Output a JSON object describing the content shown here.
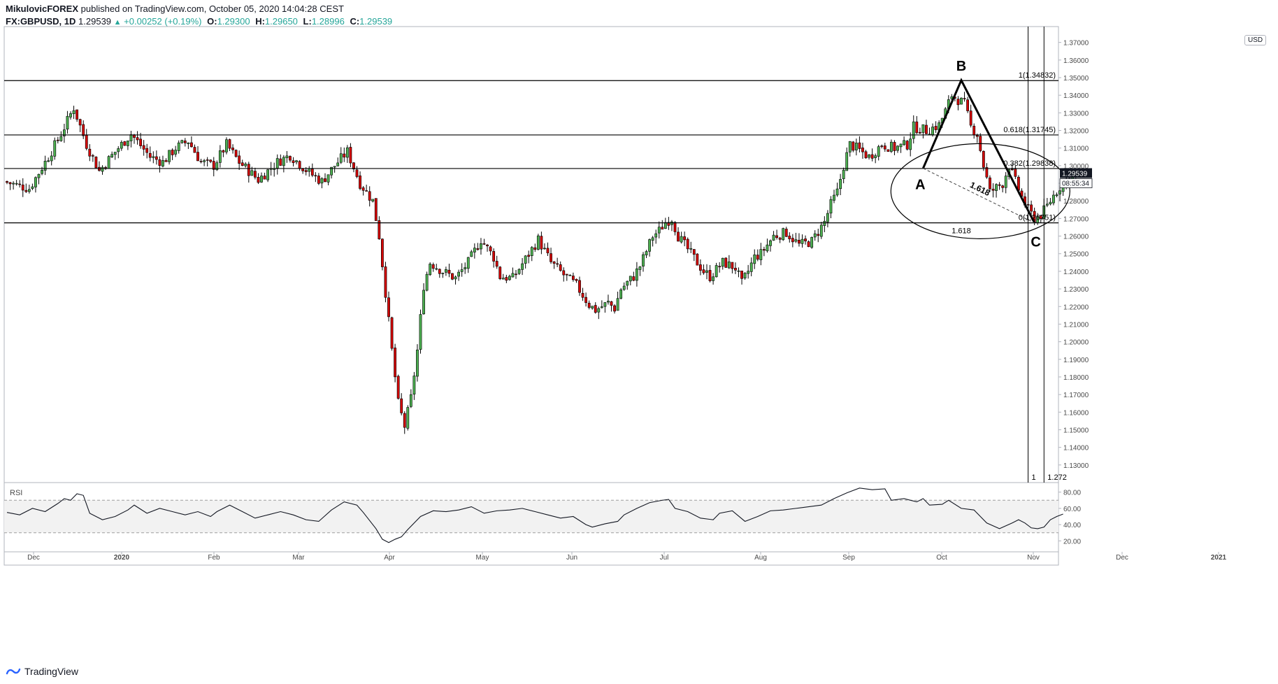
{
  "header": {
    "author": "MikulovicFOREX",
    "published": "published on TradingView.com, October 05, 2020 14:04:28 CEST",
    "symbol": "FX:GBPUSD, 1D",
    "last": "1.29539",
    "change": "+0.00252 (+0.19%)",
    "o_label": "O:",
    "o_val": "1.29300",
    "h_label": "H:",
    "h_val": "1.29650",
    "l_label": "L:",
    "l_val": "1.28996",
    "c_label": "C:",
    "c_val": "1.29539"
  },
  "footer": {
    "brand": "TradingView"
  },
  "currency_button": "USD",
  "colors": {
    "up": "#26a69a",
    "down": "#d32f2f",
    "bull_body": "#4caf50",
    "bear_body": "#d50000"
  },
  "chart_data": {
    "type": "candlestick",
    "price_axis": {
      "ylim": [
        1.12,
        1.379
      ],
      "ticks": [
        "1.37000",
        "1.36000",
        "1.35000",
        "1.34000",
        "1.33000",
        "1.32000",
        "1.31000",
        "1.30000",
        "1.29000",
        "1.28000",
        "1.27000",
        "1.26000",
        "1.25000",
        "1.24000",
        "1.23000",
        "1.22000",
        "1.21000",
        "1.20000",
        "1.19000",
        "1.18000",
        "1.17000",
        "1.16000",
        "1.15000",
        "1.14000",
        "1.13000"
      ],
      "last_price_label": "1.29539",
      "countdown_label": "08:55:34"
    },
    "time_axis": [
      "Dec",
      "2020",
      "Feb",
      "Mar",
      "Apr",
      "May",
      "Jun",
      "Jul",
      "Aug",
      "Sep",
      "Oct",
      "Nov",
      "Dec",
      "2021"
    ],
    "price_path": [
      [
        0,
        1.291
      ],
      [
        8,
        1.287
      ],
      [
        14,
        1.305
      ],
      [
        18,
        1.318
      ],
      [
        22,
        1.333
      ],
      [
        26,
        1.312
      ],
      [
        30,
        1.297
      ],
      [
        36,
        1.31
      ],
      [
        40,
        1.318
      ],
      [
        46,
        1.305
      ],
      [
        50,
        1.302
      ],
      [
        54,
        1.31
      ],
      [
        58,
        1.314
      ],
      [
        62,
        1.302
      ],
      [
        66,
        1.3
      ],
      [
        70,
        1.312
      ],
      [
        74,
        1.302
      ],
      [
        80,
        1.292
      ],
      [
        86,
        1.302
      ],
      [
        90,
        1.306
      ],
      [
        96,
        1.296
      ],
      [
        100,
        1.291
      ],
      [
        104,
        1.3
      ],
      [
        108,
        1.308
      ],
      [
        112,
        1.29
      ],
      [
        116,
        1.28
      ],
      [
        118,
        1.26
      ],
      [
        120,
        1.228
      ],
      [
        122,
        1.195
      ],
      [
        124,
        1.165
      ],
      [
        126,
        1.152
      ],
      [
        128,
        1.168
      ],
      [
        130,
        1.195
      ],
      [
        132,
        1.232
      ],
      [
        134,
        1.245
      ],
      [
        138,
        1.24
      ],
      [
        142,
        1.236
      ],
      [
        146,
        1.245
      ],
      [
        150,
        1.258
      ],
      [
        154,
        1.248
      ],
      [
        156,
        1.237
      ],
      [
        160,
        1.236
      ],
      [
        164,
        1.247
      ],
      [
        168,
        1.258
      ],
      [
        172,
        1.245
      ],
      [
        176,
        1.238
      ],
      [
        180,
        1.232
      ],
      [
        184,
        1.221
      ],
      [
        186,
        1.218
      ],
      [
        190,
        1.222
      ],
      [
        192,
        1.219
      ],
      [
        194,
        1.23
      ],
      [
        198,
        1.237
      ],
      [
        200,
        1.243
      ],
      [
        204,
        1.26
      ],
      [
        206,
        1.263
      ],
      [
        208,
        1.268
      ],
      [
        210,
        1.27
      ],
      [
        212,
        1.26
      ],
      [
        214,
        1.255
      ],
      [
        216,
        1.25
      ],
      [
        220,
        1.24
      ],
      [
        222,
        1.237
      ],
      [
        226,
        1.245
      ],
      [
        230,
        1.242
      ],
      [
        232,
        1.233
      ],
      [
        234,
        1.24
      ],
      [
        236,
        1.248
      ],
      [
        238,
        1.25
      ],
      [
        242,
        1.26
      ],
      [
        246,
        1.262
      ],
      [
        250,
        1.255
      ],
      [
        254,
        1.257
      ],
      [
        258,
        1.268
      ],
      [
        260,
        1.278
      ],
      [
        262,
        1.285
      ],
      [
        264,
        1.3
      ],
      [
        266,
        1.312
      ],
      [
        268,
        1.31
      ],
      [
        272,
        1.305
      ],
      [
        276,
        1.312
      ],
      [
        280,
        1.31
      ],
      [
        284,
        1.312
      ],
      [
        286,
        1.322
      ],
      [
        290,
        1.32
      ],
      [
        294,
        1.323
      ],
      [
        296,
        1.331
      ],
      [
        298,
        1.34
      ],
      [
        302,
        1.335
      ],
      [
        304,
        1.322
      ],
      [
        306,
        1.318
      ],
      [
        308,
        1.3
      ],
      [
        310,
        1.285
      ],
      [
        314,
        1.29
      ],
      [
        316,
        1.3
      ],
      [
        320,
        1.282
      ],
      [
        322,
        1.275
      ],
      [
        324,
        1.27
      ],
      [
        326,
        1.272
      ],
      [
        328,
        1.277
      ],
      [
        330,
        1.283
      ],
      [
        332,
        1.288
      ],
      [
        334,
        1.292
      ],
      [
        336,
        1.295
      ]
    ],
    "horizontal_levels": [
      {
        "label": "1(1.34832)",
        "value": 1.34832
      },
      {
        "label": "0.618(1.31745)",
        "value": 1.31745
      },
      {
        "label": "0.382(1.29838)",
        "value": 1.29838
      },
      {
        "label": "0(1.26751)",
        "value": 1.26751
      }
    ],
    "pattern_points": [
      {
        "label": "A",
        "bar": 288,
        "value": 1.2985
      },
      {
        "label": "B",
        "bar": 300,
        "value": 1.3485
      },
      {
        "label": "C",
        "bar": 323,
        "value": 1.2675
      }
    ],
    "annotations": [
      {
        "text": "1.618",
        "kind": "diagonal"
      },
      {
        "text": "1.618",
        "kind": "ellipse"
      }
    ],
    "vertical_lines": [
      {
        "label": "1",
        "bar": 321
      },
      {
        "label": "1.272",
        "bar": 326
      }
    ],
    "rsi": {
      "label": "RSI",
      "ylim": [
        10,
        90
      ],
      "ticks": [
        "80.00",
        "60.00",
        "40.00",
        "20.00"
      ],
      "bands": [
        70,
        30
      ],
      "series": [
        [
          0,
          55
        ],
        [
          4,
          52
        ],
        [
          8,
          60
        ],
        [
          12,
          56
        ],
        [
          16,
          66
        ],
        [
          18,
          72
        ],
        [
          20,
          70
        ],
        [
          22,
          78
        ],
        [
          24,
          76
        ],
        [
          26,
          54
        ],
        [
          30,
          46
        ],
        [
          34,
          50
        ],
        [
          38,
          58
        ],
        [
          40,
          64
        ],
        [
          44,
          54
        ],
        [
          48,
          60
        ],
        [
          52,
          56
        ],
        [
          56,
          52
        ],
        [
          60,
          56
        ],
        [
          64,
          50
        ],
        [
          66,
          56
        ],
        [
          70,
          64
        ],
        [
          74,
          56
        ],
        [
          78,
          48
        ],
        [
          82,
          52
        ],
        [
          86,
          56
        ],
        [
          90,
          52
        ],
        [
          94,
          46
        ],
        [
          98,
          44
        ],
        [
          102,
          58
        ],
        [
          106,
          68
        ],
        [
          110,
          64
        ],
        [
          112,
          55
        ],
        [
          116,
          35
        ],
        [
          118,
          22
        ],
        [
          120,
          18
        ],
        [
          122,
          22
        ],
        [
          124,
          25
        ],
        [
          126,
          34
        ],
        [
          130,
          50
        ],
        [
          134,
          57
        ],
        [
          138,
          56
        ],
        [
          142,
          58
        ],
        [
          146,
          62
        ],
        [
          150,
          54
        ],
        [
          154,
          57
        ],
        [
          158,
          58
        ],
        [
          162,
          60
        ],
        [
          166,
          56
        ],
        [
          170,
          52
        ],
        [
          174,
          48
        ],
        [
          178,
          50
        ],
        [
          182,
          40
        ],
        [
          184,
          37
        ],
        [
          188,
          41
        ],
        [
          192,
          44
        ],
        [
          194,
          52
        ],
        [
          198,
          60
        ],
        [
          202,
          67
        ],
        [
          206,
          70
        ],
        [
          208,
          71
        ],
        [
          210,
          60
        ],
        [
          214,
          56
        ],
        [
          218,
          48
        ],
        [
          222,
          46
        ],
        [
          224,
          54
        ],
        [
          228,
          57
        ],
        [
          232,
          44
        ],
        [
          236,
          50
        ],
        [
          240,
          57
        ],
        [
          244,
          58
        ],
        [
          248,
          60
        ],
        [
          252,
          62
        ],
        [
          256,
          64
        ],
        [
          260,
          72
        ],
        [
          264,
          79
        ],
        [
          268,
          85
        ],
        [
          272,
          83
        ],
        [
          276,
          84
        ],
        [
          278,
          70
        ],
        [
          282,
          72
        ],
        [
          286,
          68
        ],
        [
          288,
          72
        ],
        [
          290,
          64
        ],
        [
          294,
          65
        ],
        [
          296,
          70
        ],
        [
          300,
          60
        ],
        [
          304,
          58
        ],
        [
          306,
          50
        ],
        [
          308,
          42
        ],
        [
          312,
          35
        ],
        [
          316,
          42
        ],
        [
          318,
          46
        ],
        [
          320,
          42
        ],
        [
          322,
          36
        ],
        [
          324,
          35
        ],
        [
          326,
          37
        ],
        [
          328,
          46
        ],
        [
          330,
          50
        ],
        [
          332,
          53
        ]
      ]
    }
  }
}
